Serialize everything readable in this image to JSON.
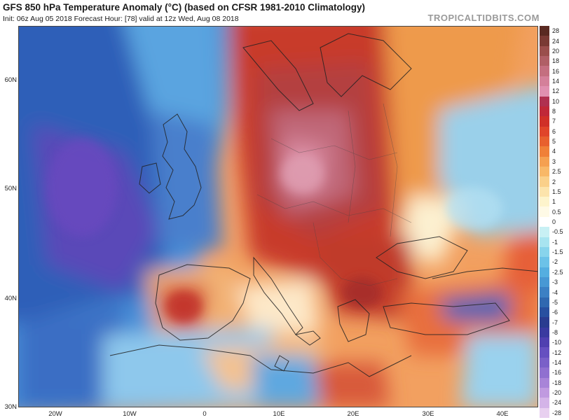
{
  "header": {
    "title": "GFS 850 hPa Temperature Anomaly (°C) (based on CFSR 1981-2010 Climatology)",
    "subtitle": "Init: 06z Aug 05 2018   Forecast Hour: [78]   valid at 12z Wed, Aug 08 2018",
    "brand": "TROPICALTIDBITS.COM"
  },
  "axes": {
    "lat_labels": [
      "60N",
      "50N",
      "40N",
      "30N"
    ],
    "lon_labels": [
      "20W",
      "10W",
      "0",
      "10E",
      "20E",
      "30E",
      "40E"
    ]
  },
  "colorbar": {
    "levels": [
      "28",
      "24",
      "20",
      "18",
      "16",
      "14",
      "12",
      "10",
      "8",
      "7",
      "6",
      "5",
      "4",
      "3",
      "2.5",
      "2",
      "1.5",
      "1",
      "0.5",
      "0",
      "-0.5",
      "-1",
      "-1.5",
      "-2",
      "-2.5",
      "-3",
      "-4",
      "-5",
      "-6",
      "-7",
      "-8",
      "-10",
      "-12",
      "-14",
      "-16",
      "-18",
      "-20",
      "-24",
      "-28"
    ],
    "colors": [
      "#5a2a22",
      "#7a3a34",
      "#9a4e4c",
      "#b05f66",
      "#c46f80",
      "#d4809a",
      "#e090b0",
      "#b03050",
      "#c02838",
      "#d03028",
      "#e0452a",
      "#e8602e",
      "#f08038",
      "#f5a050",
      "#f8b868",
      "#fad08a",
      "#fce4ac",
      "#fdf4cc",
      "#fefae6",
      "#ffffff",
      "#c8f0f4",
      "#a8e4f0",
      "#88d4ec",
      "#6cc2e8",
      "#55aee0",
      "#4898d4",
      "#3c80c4",
      "#3068b0",
      "#2850a0",
      "#2a3c90",
      "#3a3aa0",
      "#5040b0",
      "#6650c0",
      "#7a60c8",
      "#9070d0",
      "#a884d8",
      "#c09ae0",
      "#d4b4e8",
      "#e8d0f0"
    ]
  }
}
